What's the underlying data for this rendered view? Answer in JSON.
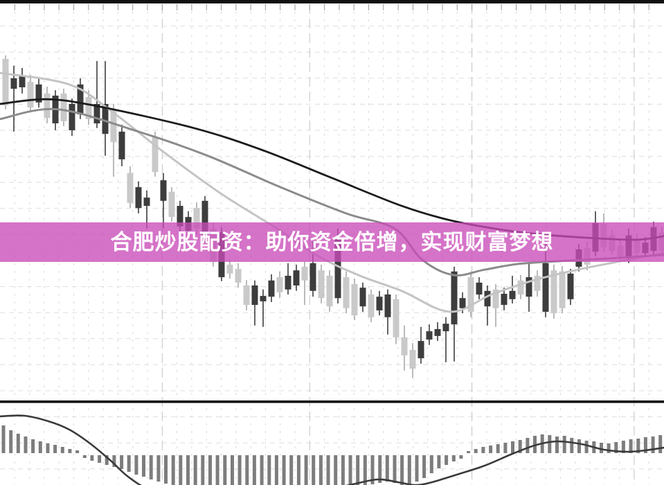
{
  "banner": {
    "text": "合肥炒股配资：助你资金倍增，实现财富梦想",
    "background_rgba": "rgba(201,75,184,0.78)",
    "text_color": "#ffffff"
  },
  "chart_data": {
    "type": "candlestick",
    "title": "",
    "legend": [],
    "axes": {
      "price_range": [
        0,
        100
      ],
      "candle_count": 80,
      "grid": {
        "vertical_lines": 44,
        "horizontal_lines": 18,
        "dark_vertical_indexes": [
          11,
          21,
          32,
          43
        ]
      }
    },
    "colors": {
      "background": "#ffffff",
      "bull_body": "#c9c9c9",
      "bull_wick": "#a8a8a8",
      "bear_body": "#3d3d3d",
      "bear_wick": "#3d3d3d",
      "ma_slow": "#1c1c1c",
      "ma_mid": "#8b8b8b",
      "ma_fast": "#c4c4c4",
      "grid_line": "#d9d9d9",
      "grid_line_dark": "#c3c3c3",
      "top_bar": "#101010",
      "separator": "#0d0d0d",
      "histogram_bar": "#7d7d7d",
      "signal_line": "#3a3a3a"
    },
    "candles_ohlc": [
      [
        82.3,
        96.2,
        81.2,
        95.2
      ],
      [
        89.8,
        93.3,
        75.0,
        86.9
      ],
      [
        90.4,
        92.7,
        85.6,
        87.3
      ],
      [
        81.7,
        90.8,
        80.4,
        88.8
      ],
      [
        88.1,
        90.0,
        81.7,
        83.1
      ],
      [
        78.8,
        87.5,
        77.3,
        85.6
      ],
      [
        85.0,
        86.5,
        75.4,
        77.3
      ],
      [
        77.9,
        86.9,
        76.5,
        85.6
      ],
      [
        82.7,
        84.2,
        73.8,
        75.4
      ],
      [
        88.1,
        89.8,
        78.5,
        79.8
      ],
      [
        78.5,
        86.5,
        76.9,
        84.6
      ],
      [
        82.7,
        94.6,
        76.0,
        77.3
      ],
      [
        82.7,
        94.6,
        68.3,
        74.4
      ],
      [
        72.1,
        82.7,
        62.5,
        81.2
      ],
      [
        75.0,
        76.9,
        65.4,
        67.3
      ],
      [
        55.2,
        65.4,
        53.8,
        63.5
      ],
      [
        59.6,
        61.2,
        52.3,
        53.8
      ],
      [
        56.7,
        58.7,
        48.1,
        54.4
      ],
      [
        63.8,
        75.0,
        62.5,
        73.5
      ],
      [
        61.5,
        63.5,
        48.1,
        55.8
      ],
      [
        51.3,
        59.6,
        50.0,
        58.3
      ],
      [
        54.4,
        55.8,
        47.1,
        48.7
      ],
      [
        51.3,
        52.9,
        46.2,
        47.5
      ],
      [
        48.1,
        55.4,
        46.5,
        53.8
      ],
      [
        55.8,
        57.1,
        44.2,
        46.2
      ],
      [
        38.8,
        49.6,
        37.5,
        48.1
      ],
      [
        47.1,
        48.5,
        33.5,
        34.6
      ],
      [
        35.6,
        39.6,
        34.2,
        38.1
      ],
      [
        33.1,
        38.5,
        31.7,
        36.9
      ],
      [
        26.9,
        33.8,
        25.4,
        32.3
      ],
      [
        32.3,
        33.7,
        21.2,
        26.9
      ],
      [
        29.4,
        31.2,
        20.8,
        27.9
      ],
      [
        33.7,
        35.4,
        27.7,
        29.2
      ],
      [
        30.4,
        36.2,
        28.8,
        34.6
      ],
      [
        35.0,
        38.5,
        29.8,
        31.2
      ],
      [
        36.5,
        38.1,
        30.8,
        32.3
      ],
      [
        33.7,
        39.0,
        26.9,
        37.5
      ],
      [
        38.5,
        44.6,
        29.2,
        30.8
      ],
      [
        28.8,
        38.1,
        27.3,
        36.5
      ],
      [
        26.5,
        36.5,
        25.0,
        35.0
      ],
      [
        45.2,
        48.1,
        27.3,
        28.8
      ],
      [
        26.0,
        36.2,
        24.6,
        34.6
      ],
      [
        24.0,
        34.2,
        22.7,
        32.7
      ],
      [
        31.7,
        33.1,
        25.0,
        26.5
      ],
      [
        23.5,
        31.2,
        22.1,
        29.8
      ],
      [
        29.2,
        30.8,
        24.0,
        25.4
      ],
      [
        29.8,
        31.2,
        18.7,
        23.5
      ],
      [
        17.9,
        29.8,
        16.0,
        28.5
      ],
      [
        12.9,
        21.2,
        8.7,
        17.9
      ],
      [
        9.2,
        16.3,
        6.7,
        14.4
      ],
      [
        16.9,
        20.8,
        10.6,
        12.1
      ],
      [
        19.6,
        21.5,
        15.8,
        17.3
      ],
      [
        20.2,
        22.1,
        16.9,
        18.3
      ],
      [
        21.7,
        23.5,
        11.0,
        19.6
      ],
      [
        36.2,
        37.5,
        11.2,
        21.5
      ],
      [
        28.8,
        30.4,
        24.6,
        26.0
      ],
      [
        25.0,
        36.2,
        23.5,
        34.6
      ],
      [
        33.1,
        34.6,
        28.5,
        29.8
      ],
      [
        30.8,
        32.3,
        21.2,
        26.5
      ],
      [
        26.0,
        32.7,
        20.8,
        31.2
      ],
      [
        30.0,
        31.7,
        25.4,
        26.9
      ],
      [
        30.8,
        35.0,
        27.3,
        28.5
      ],
      [
        29.8,
        35.2,
        28.5,
        33.7
      ],
      [
        34.6,
        38.8,
        25.0,
        29.2
      ],
      [
        30.8,
        36.5,
        29.2,
        35.0
      ],
      [
        38.5,
        44.2,
        23.5,
        25.0
      ],
      [
        24.6,
        38.1,
        23.1,
        36.5
      ],
      [
        26.0,
        37.7,
        24.6,
        36.2
      ],
      [
        35.6,
        36.9,
        26.9,
        28.5
      ],
      [
        42.3,
        43.8,
        36.2,
        37.5
      ],
      [
        38.1,
        44.6,
        36.5,
        42.7
      ],
      [
        49.6,
        52.9,
        40.4,
        41.7
      ],
      [
        42.9,
        52.3,
        41.5,
        49.4
      ],
      [
        41.9,
        47.7,
        40.8,
        46.2
      ],
      [
        40.4,
        44.8,
        39.2,
        43.3
      ],
      [
        46.2,
        48.1,
        38.5,
        39.8
      ],
      [
        41.3,
        46.7,
        40.0,
        45.2
      ],
      [
        44.2,
        45.8,
        40.2,
        41.3
      ],
      [
        48.5,
        50.0,
        40.8,
        41.9
      ],
      [
        41.9,
        48.5,
        41.3,
        47.1
      ]
    ],
    "ma_lines": {
      "slow": [
        [
          0,
          82.7
        ],
        [
          67,
          84.0
        ],
        [
          140,
          82.1
        ],
        [
          280,
          76.0
        ],
        [
          380,
          69.8
        ],
        [
          480,
          62.1
        ],
        [
          580,
          54.4
        ],
        [
          650,
          50.4
        ],
        [
          720,
          47.9
        ],
        [
          780,
          46.5
        ],
        [
          860,
          45.4
        ],
        [
          920,
          45.0
        ],
        [
          959,
          46.0
        ]
      ],
      "mid": [
        [
          0,
          78.5
        ],
        [
          83,
          81.2
        ],
        [
          200,
          75.0
        ],
        [
          300,
          68.3
        ],
        [
          400,
          60.0
        ],
        [
          500,
          52.3
        ],
        [
          570,
          48.1
        ],
        [
          610,
          39.4
        ],
        [
          655,
          35.2
        ],
        [
          700,
          36.7
        ],
        [
          750,
          38.3
        ],
        [
          820,
          39.2
        ],
        [
          880,
          39.8
        ],
        [
          959,
          40.8
        ]
      ],
      "fast": [
        [
          0,
          91.3
        ],
        [
          100,
          88.1
        ],
        [
          160,
          80.8
        ],
        [
          240,
          68.8
        ],
        [
          320,
          57.7
        ],
        [
          400,
          48.1
        ],
        [
          460,
          40.4
        ],
        [
          520,
          35.0
        ],
        [
          580,
          30.8
        ],
        [
          650,
          25.0
        ],
        [
          710,
          29.8
        ],
        [
          770,
          33.7
        ],
        [
          830,
          36.5
        ],
        [
          890,
          38.8
        ],
        [
          959,
          41.3
        ]
      ]
    },
    "indicator": {
      "type": "macd",
      "histogram": [
        40,
        33,
        28,
        24,
        20,
        17,
        14,
        12,
        9,
        6,
        4,
        -4,
        -8,
        -11,
        -14,
        -17,
        -20,
        -24,
        -28,
        -31,
        -35,
        -38,
        -41,
        -44,
        -46,
        -46,
        -46,
        -46,
        -46,
        -46,
        -46,
        -46,
        -46,
        -46,
        -46,
        -46,
        -46,
        -46,
        -46,
        -46,
        -46,
        -46,
        -46,
        -46,
        -46,
        -46,
        -46,
        -46,
        -46,
        -46,
        -42,
        -40,
        -38,
        -40,
        -43,
        -45,
        -38,
        -33,
        -26,
        -19,
        -14,
        -9,
        -5,
        3,
        6,
        9,
        11,
        13,
        15,
        17,
        19,
        22,
        25,
        27,
        26,
        24,
        25,
        22,
        20,
        18,
        17,
        15,
        14,
        16,
        18,
        20,
        21,
        23,
        24,
        26
      ],
      "signal": [
        [
          0,
          54
        ],
        [
          35,
          55
        ],
        [
          70,
          47
        ],
        [
          100,
          35
        ],
        [
          130,
          15
        ],
        [
          160,
          -10
        ],
        [
          185,
          -33
        ],
        [
          215,
          -51
        ],
        [
          260,
          -61
        ],
        [
          350,
          -65
        ],
        [
          450,
          -57
        ],
        [
          505,
          -45
        ],
        [
          545,
          -37
        ],
        [
          575,
          -41
        ],
        [
          598,
          -45
        ],
        [
          620,
          -42
        ],
        [
          660,
          -30
        ],
        [
          700,
          -17
        ],
        [
          740,
          0
        ],
        [
          775,
          13
        ],
        [
          805,
          18
        ],
        [
          840,
          14
        ],
        [
          872,
          6
        ],
        [
          905,
          3
        ],
        [
          932,
          5
        ],
        [
          959,
          9
        ]
      ]
    }
  }
}
